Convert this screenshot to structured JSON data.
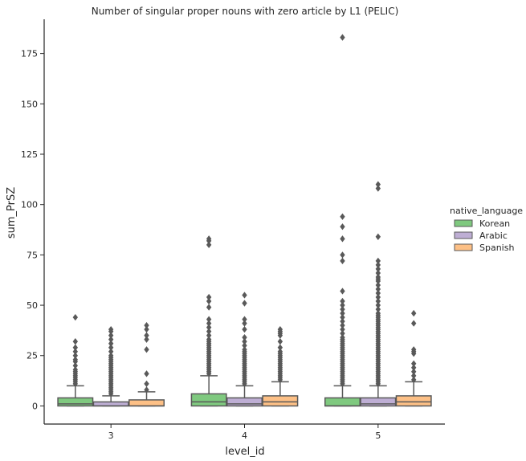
{
  "chart_data": {
    "type": "boxplot",
    "title": "Number of singular proper nouns with zero article by L1 (PELIC)",
    "xlabel": "level_id",
    "ylabel": "sum_PrSZ",
    "categories": [
      "3",
      "4",
      "5"
    ],
    "ylim": [
      -9,
      192
    ],
    "yticks": [
      0,
      25,
      50,
      75,
      100,
      125,
      150,
      175
    ],
    "grid": false,
    "legend": {
      "title": "native_language",
      "position": "right"
    },
    "series": [
      {
        "name": "Korean",
        "color": "#7fc97f",
        "boxes": [
          {
            "whisker_low": 0,
            "q1": 0,
            "median": 1,
            "q3": 4,
            "whisker_high": 10,
            "outliers": [
              11,
              12,
              13,
              14,
              15,
              16,
              17,
              18,
              20,
              22,
              23,
              25,
              27,
              29,
              32,
              44
            ]
          },
          {
            "whisker_low": 0,
            "q1": 0,
            "median": 2,
            "q3": 6,
            "whisker_high": 15,
            "outliers": [
              16,
              17,
              18,
              19,
              20,
              21,
              22,
              23,
              24,
              25,
              26,
              27,
              28,
              29,
              30,
              31,
              32,
              33,
              35,
              37,
              39,
              41,
              43,
              49,
              52,
              54,
              80,
              82,
              83
            ]
          },
          {
            "whisker_low": 0,
            "q1": 0,
            "median": 0,
            "q3": 4,
            "whisker_high": 10,
            "outliers": [
              11,
              12,
              13,
              14,
              15,
              16,
              17,
              18,
              19,
              20,
              21,
              22,
              23,
              24,
              25,
              26,
              27,
              28,
              29,
              30,
              31,
              32,
              33,
              34,
              36,
              38,
              40,
              42,
              44,
              46,
              48,
              50,
              52,
              57,
              72,
              75,
              83,
              89,
              94,
              183
            ]
          }
        ]
      },
      {
        "name": "Arabic",
        "color": "#beaed4",
        "boxes": [
          {
            "whisker_low": 0,
            "q1": 0,
            "median": 0,
            "q3": 2,
            "whisker_high": 5,
            "outliers": [
              6,
              7,
              8,
              9,
              10,
              11,
              12,
              13,
              14,
              15,
              16,
              17,
              18,
              19,
              20,
              21,
              22,
              23,
              24,
              25,
              27,
              29,
              31,
              33,
              35,
              37,
              38
            ]
          },
          {
            "whisker_low": 0,
            "q1": 0,
            "median": 1,
            "q3": 4,
            "whisker_high": 10,
            "outliers": [
              11,
              12,
              13,
              14,
              15,
              16,
              17,
              18,
              19,
              20,
              21,
              22,
              23,
              24,
              25,
              26,
              27,
              28,
              30,
              32,
              34,
              38,
              41,
              43,
              51,
              55
            ]
          },
          {
            "whisker_low": 0,
            "q1": 0,
            "median": 1,
            "q3": 4,
            "whisker_high": 10,
            "outliers": [
              11,
              12,
              13,
              14,
              15,
              16,
              17,
              18,
              19,
              20,
              21,
              22,
              23,
              24,
              25,
              26,
              27,
              28,
              29,
              30,
              31,
              32,
              33,
              34,
              35,
              36,
              37,
              38,
              39,
              40,
              41,
              42,
              43,
              44,
              45,
              46,
              48,
              50,
              52,
              54,
              56,
              58,
              60,
              62,
              63,
              64,
              66,
              68,
              70,
              72,
              84,
              108,
              110
            ]
          }
        ]
      },
      {
        "name": "Spanish",
        "color": "#fdc086",
        "boxes": [
          {
            "whisker_low": 0,
            "q1": 0,
            "median": 0,
            "q3": 3,
            "whisker_high": 7,
            "outliers": [
              8,
              11,
              16,
              28,
              33,
              35,
              38,
              40
            ]
          },
          {
            "whisker_low": 0,
            "q1": 0,
            "median": 2,
            "q3": 5,
            "whisker_high": 12,
            "outliers": [
              13,
              14,
              15,
              16,
              17,
              18,
              19,
              20,
              21,
              22,
              23,
              24,
              25,
              26,
              27,
              29,
              32,
              35,
              36,
              37,
              38
            ]
          },
          {
            "whisker_low": 0,
            "q1": 0,
            "median": 2,
            "q3": 5,
            "whisker_high": 12,
            "outliers": [
              13,
              15,
              17,
              19,
              21,
              26,
              27,
              28,
              41,
              46
            ]
          }
        ]
      }
    ]
  }
}
